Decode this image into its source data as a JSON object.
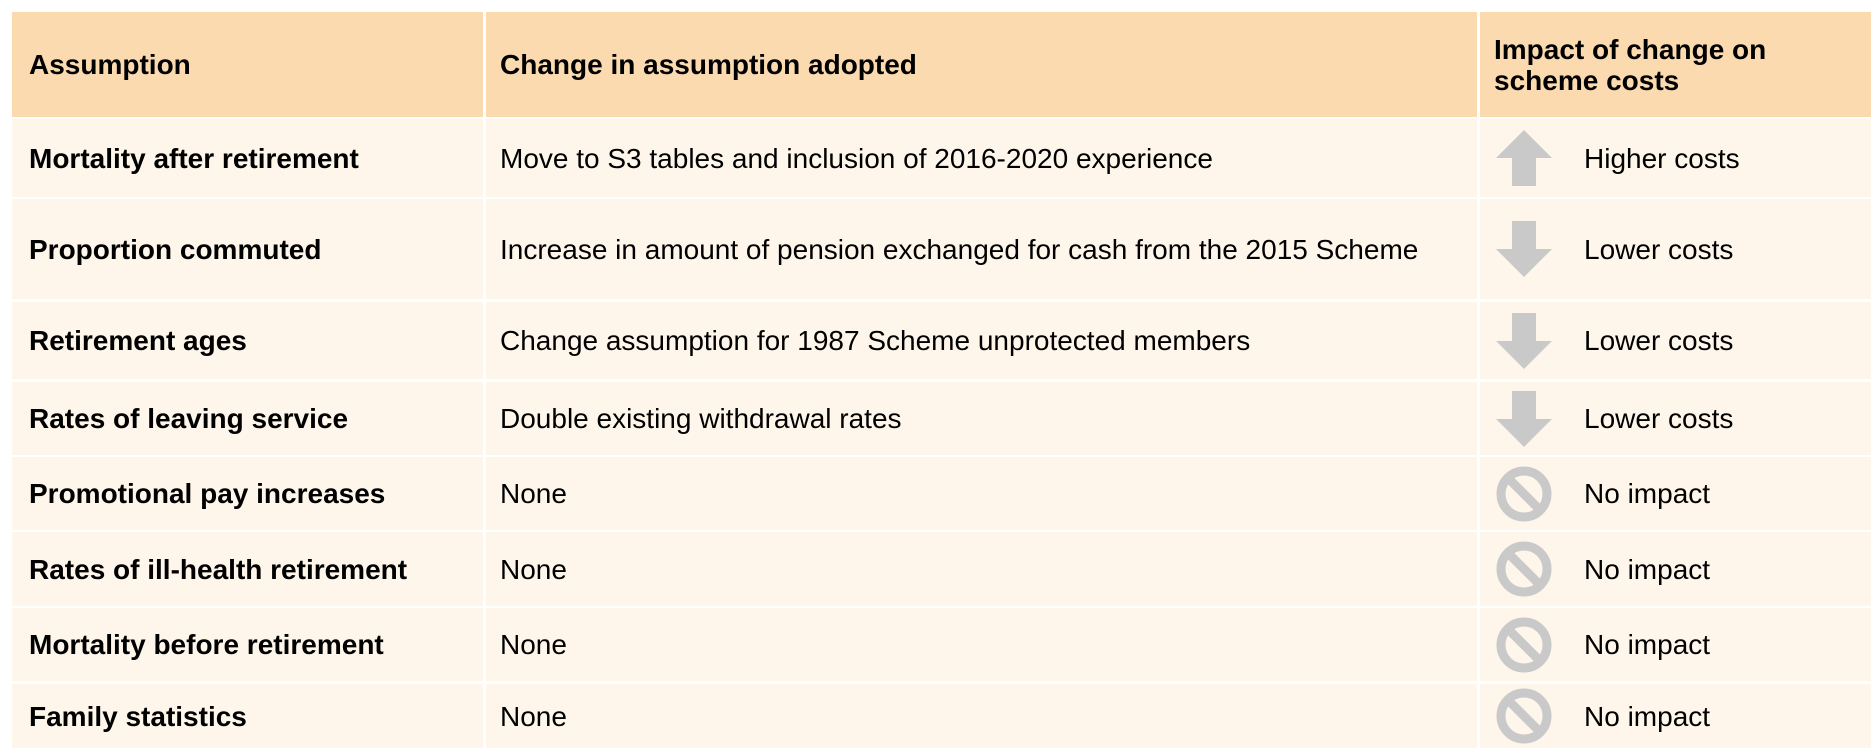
{
  "table": {
    "header": [
      "Assumption",
      "Change in assumption adopted",
      "Impact of change on scheme costs"
    ],
    "rows": [
      [
        "Mortality after retirement",
        "Move to S3 tables and inclusion of 2016-2020 experience",
        "Higher costs"
      ],
      [
        "Proportion commuted",
        "Increase in amount of pension exchanged for cash from the 2015 Scheme",
        "Lower costs"
      ],
      [
        "Retirement ages",
        "Change assumption for 1987 Scheme unprotected members",
        "Lower costs"
      ],
      [
        "Rates of leaving service",
        "Double existing withdrawal rates",
        "Lower costs"
      ],
      [
        "Promotional pay increases",
        "None",
        "No impact"
      ],
      [
        "Rates of ill-health retirement",
        "None",
        "No impact"
      ],
      [
        "Mortality before retirement",
        "None",
        "No impact"
      ],
      [
        "Family statistics",
        "None",
        "No impact"
      ]
    ]
  }
}
